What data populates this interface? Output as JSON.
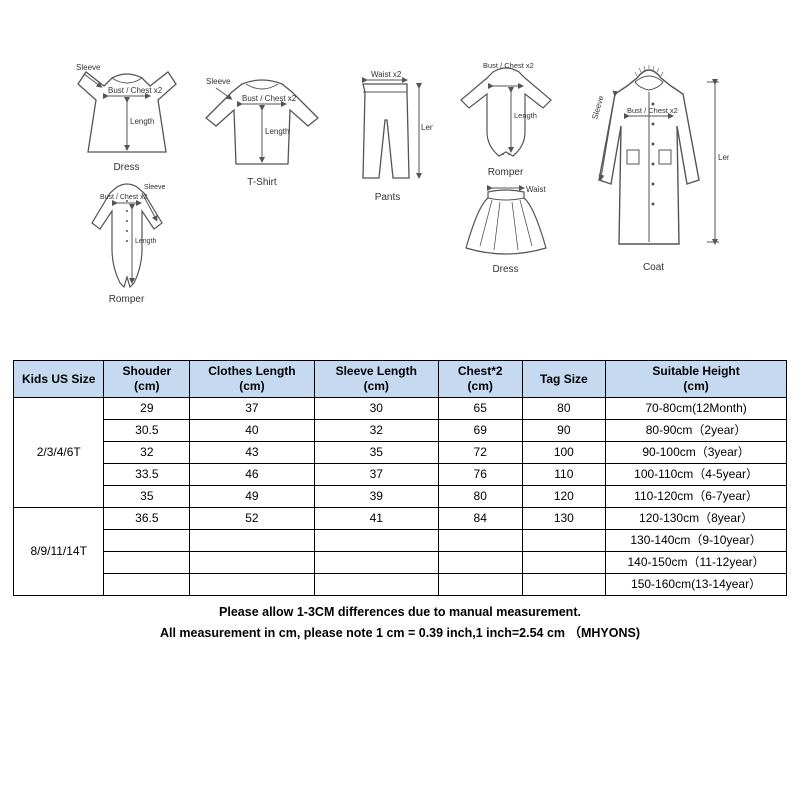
{
  "diagrams": {
    "dress": {
      "label": "Dress",
      "sleeve": "Sleeve",
      "bust": "Bust / Chest x2",
      "length": "Length"
    },
    "romper1": {
      "label": "Romper",
      "sleeve": "Sleeve",
      "bust": "Bust / Chest x2",
      "length": "Length"
    },
    "tshirt": {
      "label": "T-Shirt",
      "sleeve": "Sleeve",
      "bust": "Bust / Chest x2",
      "length": "Length"
    },
    "pants": {
      "label": "Pants",
      "waist": "Waist x2",
      "length": "Length"
    },
    "romper2": {
      "label": "Romper",
      "bust": "Bust / Chest x2",
      "length": "Length"
    },
    "skirt": {
      "label": "Dress",
      "waist": "Waist"
    },
    "coat": {
      "label": "Coat",
      "sleeve": "Sleeve",
      "bust": "Bust / Chest x2",
      "length": "Length"
    }
  },
  "table": {
    "columns": [
      "Kids US Size",
      "Shouder\n(cm)",
      "Clothes Length\n(cm)",
      "Sleeve Length\n(cm)",
      "Chest*2\n(cm)",
      "Tag Size",
      "Suitable Height\n(cm)"
    ],
    "groups": [
      {
        "label": "2/3/4/6T",
        "rows": [
          {
            "shoulder": "29",
            "length": "37",
            "sleeve": "30",
            "chest": "65",
            "tag": "80",
            "height": "70-80cm(12Month)"
          },
          {
            "shoulder": "30.5",
            "length": "40",
            "sleeve": "32",
            "chest": "69",
            "tag": "90",
            "height": "80-90cm（2year）"
          },
          {
            "shoulder": "32",
            "length": "43",
            "sleeve": "35",
            "chest": "72",
            "tag": "100",
            "height": "90-100cm（3year）"
          },
          {
            "shoulder": "33.5",
            "length": "46",
            "sleeve": "37",
            "chest": "76",
            "tag": "110",
            "height": "100-110cm（4-5year）"
          },
          {
            "shoulder": "35",
            "length": "49",
            "sleeve": "39",
            "chest": "80",
            "tag": "120",
            "height": "110-120cm（6-7year）"
          }
        ]
      },
      {
        "label": "8/9/11/14T",
        "rows": [
          {
            "shoulder": "36.5",
            "length": "52",
            "sleeve": "41",
            "chest": "84",
            "tag": "130",
            "height": "120-130cm（8year）"
          },
          {
            "shoulder": "",
            "length": "",
            "sleeve": "",
            "chest": "",
            "tag": "",
            "height": "130-140cm（9-10year）"
          },
          {
            "shoulder": "",
            "length": "",
            "sleeve": "",
            "chest": "",
            "tag": "",
            "height": "140-150cm（11-12year）"
          },
          {
            "shoulder": "",
            "length": "",
            "sleeve": "",
            "chest": "",
            "tag": "",
            "height": "150-160cm(13-14year）"
          }
        ]
      }
    ],
    "header_bg": "#c5d9f1",
    "border_color": "#000000",
    "cell_fontsize": 12
  },
  "footnote": {
    "line1": "Please allow 1-3CM differences due to manual measurement.",
    "line2": "All measurement in cm, please note 1 cm = 0.39 inch,1 inch=2.54 cm  （MHYONS)"
  }
}
